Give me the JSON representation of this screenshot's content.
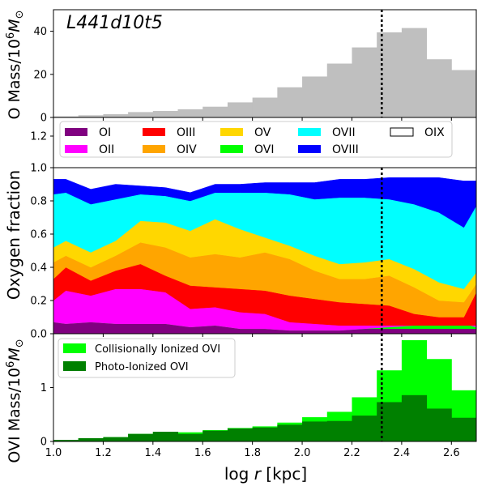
{
  "chart_data": [
    {
      "panel": "top",
      "type": "bar",
      "title": "L441d10t5",
      "ylabel": "O Mass/10^6 M_sun",
      "xlim": [
        1.0,
        2.7
      ],
      "ylim": [
        0,
        50
      ],
      "yticks": [
        0,
        20,
        40
      ],
      "bar_color": "#bfbfbf",
      "bin_edges": [
        1.0,
        1.1,
        1.2,
        1.3,
        1.4,
        1.5,
        1.6,
        1.7,
        1.8,
        1.9,
        2.0,
        2.1,
        2.2,
        2.3,
        2.4,
        2.5,
        2.6,
        2.7
      ],
      "values": [
        0.5,
        1.0,
        1.5,
        2.5,
        3.0,
        3.8,
        5.0,
        7.0,
        9.2,
        14.0,
        19.0,
        25.0,
        32.5,
        39.5,
        41.5,
        27.0,
        22.0
      ],
      "vline_x": 2.32
    },
    {
      "panel": "legend",
      "type": "legend",
      "yticks_shown": [
        "1.2",
        "1.0",
        "0.8",
        "0.6",
        "0.4",
        "0.2",
        "0.0"
      ],
      "entries": [
        {
          "label": "OI",
          "color": "#800080"
        },
        {
          "label": "OII",
          "color": "#ff00ff"
        },
        {
          "label": "OIII",
          "color": "#ff0000"
        },
        {
          "label": "OIV",
          "color": "#ffa500"
        },
        {
          "label": "OV",
          "color": "#ffd700"
        },
        {
          "label": "OVI",
          "color": "#00ff00"
        },
        {
          "label": "OVII",
          "color": "#00ffff"
        },
        {
          "label": "OVIII",
          "color": "#0000ff"
        },
        {
          "label": "OIX",
          "color": "#ffffff"
        }
      ]
    },
    {
      "panel": "middle",
      "type": "area",
      "ylabel": "Oxygen fraction",
      "xlim": [
        1.0,
        2.7
      ],
      "ylim": [
        0,
        1.0
      ],
      "x": [
        1.0,
        1.05,
        1.15,
        1.25,
        1.35,
        1.45,
        1.55,
        1.65,
        1.75,
        1.85,
        1.95,
        2.05,
        2.15,
        2.25,
        2.35,
        2.45,
        2.55,
        2.65,
        2.7
      ],
      "cumulative_upper": [
        {
          "name": "OI",
          "color": "#800080",
          "values": [
            0.07,
            0.07,
            0.07,
            0.07,
            0.06,
            0.06,
            0.05,
            0.05,
            0.04,
            0.04,
            0.03,
            0.03,
            0.03,
            0.03,
            0.03,
            0.03,
            0.03,
            0.03,
            0.03
          ]
        },
        {
          "name": "OVI",
          "color": "#00ff00",
          "values": [
            0.07,
            0.06,
            0.07,
            0.06,
            0.06,
            0.06,
            0.04,
            0.05,
            0.03,
            0.03,
            0.02,
            0.02,
            0.02,
            0.03,
            0.04,
            0.05,
            0.06,
            0.06,
            0.04
          ]
        },
        {
          "name": "OII",
          "color": "#ff00ff",
          "values": [
            0.2,
            0.26,
            0.23,
            0.27,
            0.27,
            0.25,
            0.15,
            0.16,
            0.13,
            0.12,
            0.07,
            0.06,
            0.05,
            0.05,
            0.05,
            0.05,
            0.05,
            0.05,
            0.05
          ]
        },
        {
          "name": "OIII",
          "color": "#ff0000",
          "values": [
            0.33,
            0.4,
            0.32,
            0.38,
            0.42,
            0.35,
            0.29,
            0.28,
            0.27,
            0.26,
            0.23,
            0.21,
            0.19,
            0.18,
            0.17,
            0.12,
            0.1,
            0.1,
            0.25
          ]
        },
        {
          "name": "OIV",
          "color": "#ffa500",
          "values": [
            0.43,
            0.47,
            0.4,
            0.47,
            0.55,
            0.52,
            0.46,
            0.48,
            0.46,
            0.49,
            0.45,
            0.38,
            0.33,
            0.33,
            0.35,
            0.28,
            0.2,
            0.19,
            0.3
          ]
        },
        {
          "name": "OV",
          "color": "#ffd700",
          "values": [
            0.52,
            0.56,
            0.49,
            0.56,
            0.68,
            0.67,
            0.62,
            0.69,
            0.63,
            0.58,
            0.53,
            0.47,
            0.42,
            0.43,
            0.45,
            0.39,
            0.31,
            0.27,
            0.37
          ]
        },
        {
          "name": "OVII",
          "color": "#00ffff",
          "values": [
            0.84,
            0.85,
            0.78,
            0.81,
            0.84,
            0.83,
            0.8,
            0.85,
            0.85,
            0.85,
            0.84,
            0.81,
            0.82,
            0.82,
            0.81,
            0.78,
            0.73,
            0.64,
            0.77
          ]
        },
        {
          "name": "OVIII",
          "color": "#0000ff",
          "values": [
            0.93,
            0.93,
            0.87,
            0.9,
            0.89,
            0.88,
            0.85,
            0.9,
            0.9,
            0.91,
            0.91,
            0.91,
            0.93,
            0.93,
            0.94,
            0.94,
            0.94,
            0.92,
            0.92
          ]
        }
      ],
      "xticks": [
        "1.0",
        "1.2",
        "1.4",
        "1.6",
        "1.8",
        "2.0",
        "2.2",
        "2.4",
        "2.6"
      ],
      "vline_x": 2.32
    },
    {
      "panel": "bottom",
      "type": "bar",
      "ylabel": "OVI Mass/10^6 M_sun",
      "xlabel": "log r [kpc]",
      "xlim": [
        1.0,
        2.7
      ],
      "ylim": [
        0,
        2.0
      ],
      "yticks": [
        0,
        1
      ],
      "bin_edges": [
        1.0,
        1.1,
        1.2,
        1.3,
        1.4,
        1.5,
        1.6,
        1.7,
        1.8,
        1.9,
        2.0,
        2.1,
        2.2,
        2.3,
        2.4,
        2.5,
        2.6,
        2.7
      ],
      "series": [
        {
          "name": "Collisionally Ionized OVI",
          "color": "#00ff00",
          "values": [
            0.03,
            0.06,
            0.08,
            0.14,
            0.18,
            0.17,
            0.21,
            0.25,
            0.28,
            0.35,
            0.45,
            0.55,
            0.82,
            1.32,
            1.88,
            1.53,
            0.95
          ]
        },
        {
          "name": "Photo-Ionized OVI",
          "color": "#008000",
          "values": [
            0.03,
            0.06,
            0.08,
            0.14,
            0.18,
            0.14,
            0.2,
            0.24,
            0.26,
            0.31,
            0.37,
            0.38,
            0.48,
            0.73,
            0.86,
            0.61,
            0.44
          ]
        }
      ],
      "legend": [
        "Collisionally Ionized OVI",
        "Photo-Ionized OVI"
      ],
      "xticks": [
        "1.0",
        "1.2",
        "1.4",
        "1.6",
        "1.8",
        "2.0",
        "2.2",
        "2.4",
        "2.6"
      ],
      "vline_x": 2.32
    }
  ],
  "labels": {
    "title_prefix": "L441d10t5",
    "top_ylabel": "O Mass/10",
    "top_ylabel_exp": "6",
    "top_ylabel_unit": "M",
    "top_ylabel_sub": "⊙",
    "mid_ylabel": "Oxygen fraction",
    "bot_ylabel": "OVI Mass/10",
    "bot_ylabel_exp": "6",
    "bot_ylabel_unit": "M",
    "bot_ylabel_sub": "⊙",
    "xlabel_log": "log ",
    "xlabel_r": "r",
    "xlabel_unit": " [kpc]"
  }
}
